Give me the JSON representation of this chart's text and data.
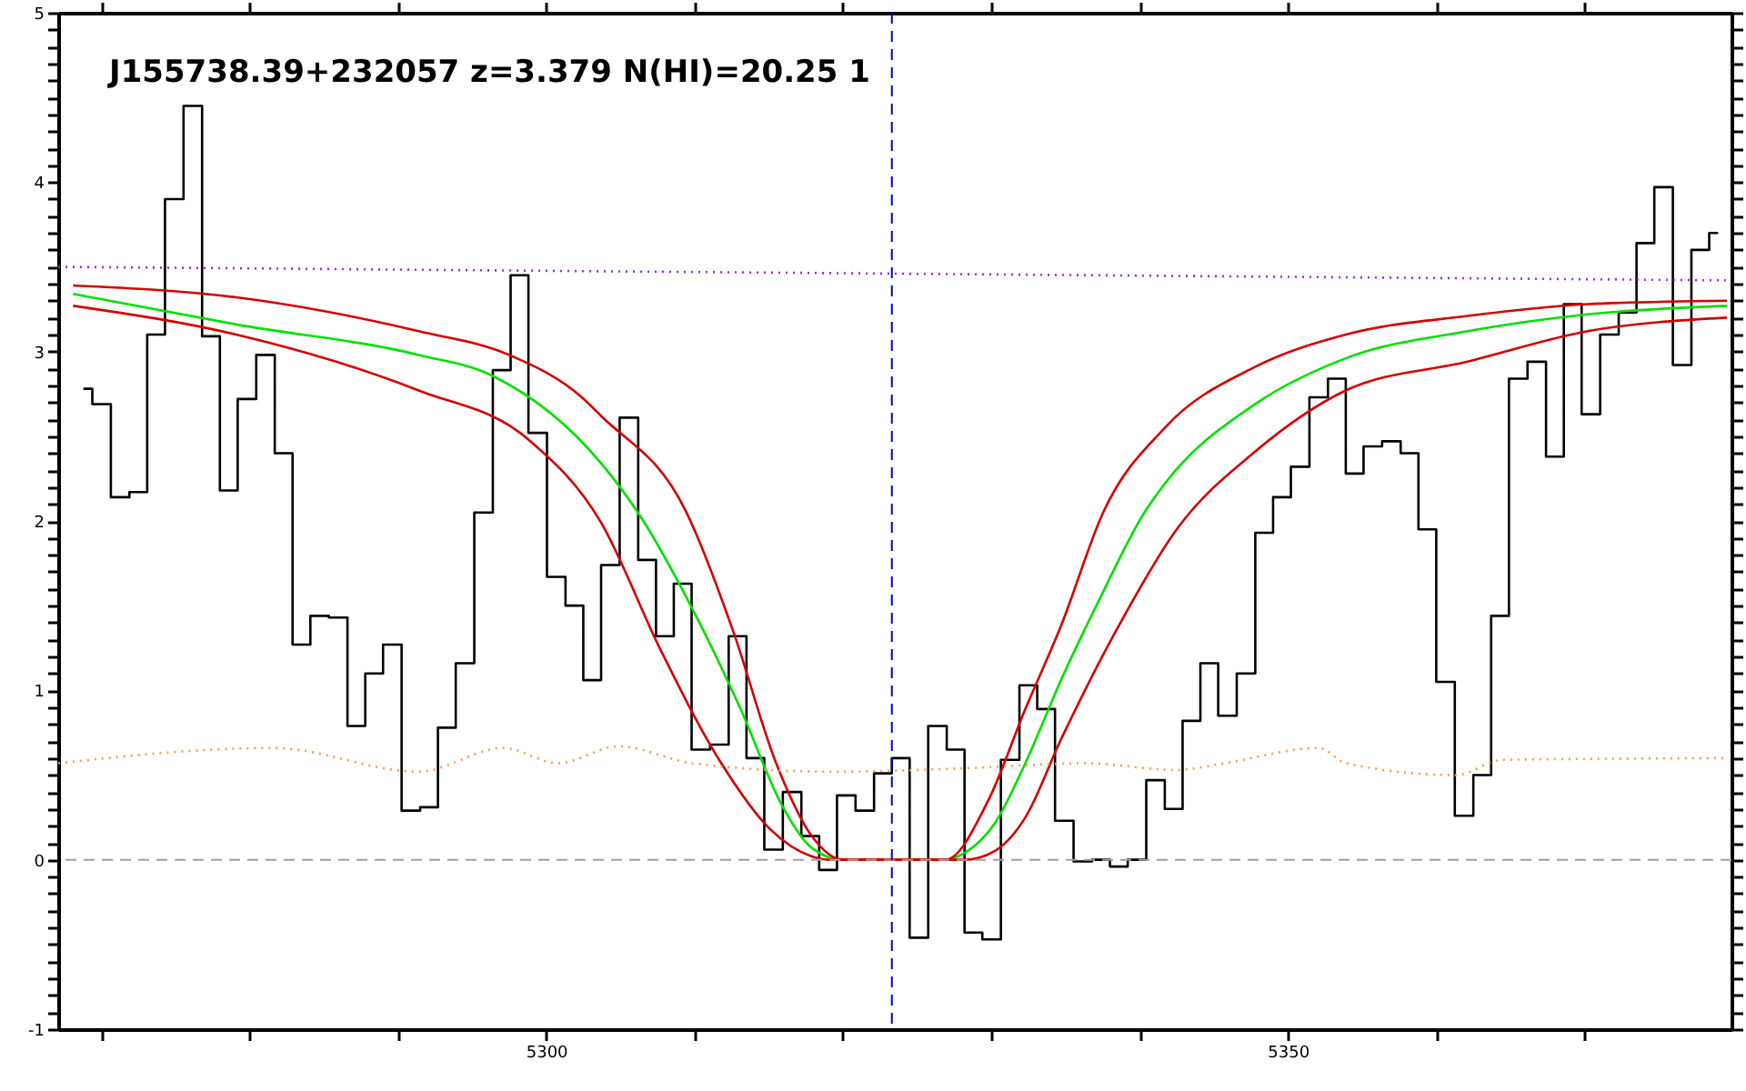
{
  "chart_data": {
    "type": "step",
    "title": "J155738.39+232057 z=3.379 N(HI)=20.25 1",
    "xlim": [
      5267.1,
      5379.9
    ],
    "ylim": [
      -1,
      5
    ],
    "xticks": [
      {
        "value": 5270,
        "label": null
      },
      {
        "value": 5280,
        "label": null
      },
      {
        "value": 5290,
        "label": null
      },
      5300,
      {
        "value": 5310,
        "label": null
      },
      {
        "value": 5320,
        "label": null
      },
      {
        "value": 5330,
        "label": null
      },
      {
        "value": 5340,
        "label": null
      },
      5350,
      {
        "value": 5360,
        "label": null
      },
      {
        "value": 5370,
        "label": null
      }
    ],
    "yticks": [
      -1,
      {
        "value": -0.9,
        "label": null
      },
      {
        "value": -0.8,
        "label": null
      },
      {
        "value": -0.7,
        "label": null
      },
      {
        "value": -0.6,
        "label": null
      },
      {
        "value": -0.5,
        "label": null
      },
      {
        "value": -0.4,
        "label": null
      },
      {
        "value": -0.3,
        "label": null
      },
      {
        "value": -0.2,
        "label": null
      },
      {
        "value": -0.1,
        "label": null
      },
      0,
      {
        "value": 0.1,
        "label": null
      },
      {
        "value": 0.2,
        "label": null
      },
      {
        "value": 0.3,
        "label": null
      },
      {
        "value": 0.4,
        "label": null
      },
      {
        "value": 0.5,
        "label": null
      },
      {
        "value": 0.6,
        "label": null
      },
      {
        "value": 0.7,
        "label": null
      },
      {
        "value": 0.8,
        "label": null
      },
      {
        "value": 0.9,
        "label": null
      },
      1,
      {
        "value": 1.1,
        "label": null
      },
      {
        "value": 1.2,
        "label": null
      },
      {
        "value": 1.3,
        "label": null
      },
      {
        "value": 1.4,
        "label": null
      },
      {
        "value": 1.5,
        "label": null
      },
      {
        "value": 1.6,
        "label": null
      },
      {
        "value": 1.7,
        "label": null
      },
      {
        "value": 1.8,
        "label": null
      },
      {
        "value": 1.9,
        "label": null
      },
      2,
      {
        "value": 2.1,
        "label": null
      },
      {
        "value": 2.2,
        "label": null
      },
      {
        "value": 2.3,
        "label": null
      },
      {
        "value": 2.4,
        "label": null
      },
      {
        "value": 2.5,
        "label": null
      },
      {
        "value": 2.6,
        "label": null
      },
      {
        "value": 2.7,
        "label": null
      },
      {
        "value": 2.8,
        "label": null
      },
      {
        "value": 2.9,
        "label": null
      },
      3,
      {
        "value": 3.1,
        "label": null
      },
      {
        "value": 3.2,
        "label": null
      },
      {
        "value": 3.3,
        "label": null
      },
      {
        "value": 3.4,
        "label": null
      },
      {
        "value": 3.5,
        "label": null
      },
      {
        "value": 3.6,
        "label": null
      },
      {
        "value": 3.7,
        "label": null
      },
      {
        "value": 3.8,
        "label": null
      },
      {
        "value": 3.9,
        "label": null
      },
      4,
      {
        "value": 4.1,
        "label": null
      },
      {
        "value": 4.2,
        "label": null
      },
      {
        "value": 4.3,
        "label": null
      },
      {
        "value": 4.4,
        "label": null
      },
      {
        "value": 4.5,
        "label": null
      },
      {
        "value": 4.6,
        "label": null
      },
      {
        "value": 4.7,
        "label": null
      },
      {
        "value": 4.8,
        "label": null
      },
      {
        "value": 4.9,
        "label": null
      },
      5
    ],
    "series": [
      {
        "color": "#000000",
        "x": [
          5268.8,
          5270.0,
          5271.3,
          5272.5,
          5273.7,
          5274.9,
          5276.2,
          5277.4,
          5278.6,
          5279.8,
          5281.1,
          5282.3,
          5283.5,
          5284.7,
          5286.0,
          5287.2,
          5288.4,
          5289.6,
          5290.9,
          5292.1,
          5293.3,
          5294.5,
          5295.8,
          5297.0,
          5298.2,
          5299.4,
          5300.7,
          5301.9,
          5303.1,
          5304.3,
          5305.6,
          5306.8,
          5308.0,
          5309.2,
          5310.4,
          5311.7,
          5312.9,
          5314.1,
          5315.3,
          5316.6,
          5317.8,
          5319.0,
          5320.2,
          5321.5,
          5322.7,
          5323.9,
          5325.1,
          5326.4,
          5327.6,
          5328.8,
          5330.0,
          5331.3,
          5332.5,
          5333.7,
          5334.9,
          5336.2,
          5337.4,
          5338.6,
          5339.8,
          5341.1,
          5342.3,
          5343.5,
          5344.7,
          5345.9,
          5347.2,
          5348.4,
          5349.6,
          5350.8,
          5352.1,
          5353.3,
          5354.5,
          5355.7,
          5357.0,
          5358.2,
          5359.4,
          5360.6,
          5361.9,
          5363.1,
          5364.3,
          5365.5,
          5366.8,
          5368.0,
          5369.2,
          5370.4,
          5371.7,
          5372.9,
          5374.1,
          5375.3,
          5376.6,
          5377.8,
          5379.0
        ],
        "values": [
          2.78,
          2.69,
          2.14,
          2.17,
          3.1,
          3.9,
          4.45,
          3.09,
          2.18,
          2.72,
          2.98,
          2.4,
          1.27,
          1.44,
          1.43,
          0.79,
          1.1,
          1.27,
          0.29,
          0.31,
          0.78,
          1.16,
          2.05,
          2.89,
          3.45,
          2.52,
          1.67,
          1.5,
          1.06,
          1.74,
          2.61,
          1.77,
          1.32,
          1.63,
          0.65,
          0.68,
          1.32,
          0.6,
          0.06,
          0.4,
          0.14,
          -0.06,
          0.38,
          0.29,
          0.51,
          0.6,
          -0.46,
          0.79,
          0.65,
          -0.43,
          -0.47,
          0.59,
          1.03,
          0.89,
          0.23,
          -0.01,
          0.0,
          -0.04,
          0.0,
          0.47,
          0.3,
          0.82,
          1.16,
          0.85,
          1.1,
          1.93,
          2.14,
          2.32,
          2.73,
          2.84,
          2.28,
          2.44,
          2.47,
          2.4,
          1.95,
          1.05,
          0.26,
          0.5,
          1.44,
          2.84,
          2.94,
          2.38,
          3.28,
          2.63,
          3.1,
          3.23,
          3.64,
          3.97,
          2.92,
          3.6,
          3.7
        ]
      },
      {
        "type": "line",
        "color": "#00e000",
        "x": [
          5268.1,
          5279.1,
          5291.4,
          5296.3,
          5303.7,
          5306.1,
          5309.8,
          5313.1,
          5315.9,
          5317.9,
          5320.0,
          5326.9,
          5328.2,
          5330.2,
          5332.3,
          5334.7,
          5337.2,
          5340.4,
          5341.7,
          5347.8,
          5353.9,
          5362.1,
          5370.2,
          5379.6
        ],
        "values": [
          3.34,
          3.16,
          2.98,
          2.86,
          2.34,
          2.06,
          1.49,
          0.89,
          0.32,
          0.07,
          0,
          0,
          0.04,
          0.21,
          0.57,
          1.06,
          1.52,
          2.06,
          2.22,
          2.69,
          2.96,
          3.12,
          3.22,
          3.27
        ]
      },
      {
        "type": "line",
        "color": "#d40000",
        "x": [
          5268.1,
          5279.1,
          5291.4,
          5297.5,
          5302.4,
          5303.7,
          5309.4,
          5312.6,
          5315.5,
          5317.9,
          5320.0,
          5326.9,
          5329.8,
          5332.3,
          5334.7,
          5337.6,
          5341.7,
          5347.8,
          5353.9,
          5362.1,
          5370.2,
          5379.6
        ],
        "values": [
          3.39,
          3.32,
          3.12,
          2.98,
          2.73,
          2.62,
          2.06,
          1.35,
          0.57,
          0.14,
          0,
          0,
          0.35,
          0.89,
          1.38,
          2.06,
          2.55,
          2.91,
          3.1,
          3.21,
          3.28,
          3.3
        ]
      },
      {
        "type": "line",
        "color": "#d40000",
        "x": [
          5268.1,
          5279.1,
          5291.4,
          5298.8,
          5303.7,
          5307.7,
          5311.8,
          5315.1,
          5317.9,
          5319.2,
          5328.2,
          5330.2,
          5332.3,
          5334.7,
          5338.4,
          5342.5,
          5347.8,
          5353.9,
          5362.1,
          5370.2,
          5379.6
        ],
        "values": [
          3.27,
          3.1,
          2.77,
          2.48,
          1.99,
          1.24,
          0.57,
          0.18,
          0.02,
          0,
          0,
          0.05,
          0.25,
          0.71,
          1.35,
          1.95,
          2.41,
          2.77,
          2.94,
          3.12,
          3.2
        ]
      },
      {
        "type": "line",
        "line_style": "dotted",
        "color": "#9a30d0",
        "x": [
          5267.1,
          5323.3,
          5379.6
        ],
        "values": [
          3.5,
          3.46,
          3.42
        ]
      },
      {
        "type": "line",
        "line_style": "dotted",
        "color": "#f0a050",
        "x": [
          5267.1,
          5281.6,
          5291.4,
          5297.1,
          5300.8,
          5304.9,
          5309.8,
          5319.2,
          5328.2,
          5336.3,
          5342.5,
          5345.7,
          5352.1,
          5353.9,
          5361.3,
          5364.5,
          5379.6
        ],
        "values": [
          0.57,
          0.66,
          0.52,
          0.66,
          0.57,
          0.67,
          0.57,
          0.52,
          0.54,
          0.57,
          0.53,
          0.57,
          0.66,
          0.57,
          0.5,
          0.59,
          0.6
        ]
      }
    ],
    "ref_lines": [
      {
        "axis": "y",
        "value": 0,
        "color": "#a0a0a0",
        "line_style": "dashed"
      },
      {
        "axis": "x",
        "value": 5323.3,
        "color": "#0000cc",
        "line_style": "dashed"
      }
    ]
  }
}
